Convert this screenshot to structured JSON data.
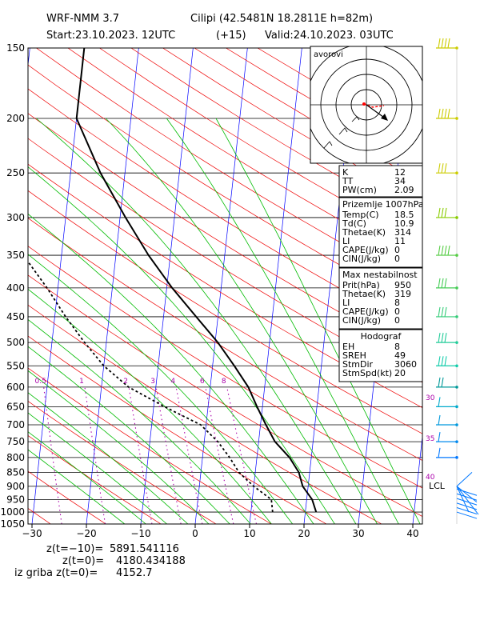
{
  "header": {
    "model": "WRF-NMM 3.7",
    "station": "Cilipi (42.5481N 18.2811E  h=82m)",
    "start": "Start:23.10.2023.   12UTC",
    "lead": "(+15)",
    "valid": "Valid:24.10.2023.  03UTC"
  },
  "chart_data": {
    "type": "line",
    "title": "",
    "pressure_ticks": [
      150,
      200,
      250,
      300,
      350,
      400,
      450,
      500,
      550,
      600,
      650,
      700,
      750,
      800,
      850,
      900,
      950,
      1000,
      1050
    ],
    "temperature_ticks": [
      -30,
      -20,
      -10,
      0,
      10,
      20,
      30,
      40
    ],
    "xlim": [
      -30,
      42
    ],
    "ylim": [
      1050,
      150
    ],
    "skew": true,
    "mixing_ratio_labels": [
      "0.5",
      "1",
      "2",
      "3",
      "4",
      "6",
      "8"
    ],
    "mixing_ratio_values": [
      0.5,
      1,
      2,
      3,
      4,
      6,
      8
    ],
    "series": [
      {
        "kind": "temperature",
        "style": "solid",
        "points": [
          [
            22,
            1000
          ],
          [
            21,
            950
          ],
          [
            19,
            900
          ],
          [
            18,
            850
          ],
          [
            16,
            800
          ],
          [
            13,
            750
          ],
          [
            11,
            700
          ],
          [
            9,
            650
          ],
          [
            7,
            600
          ],
          [
            4,
            550
          ],
          [
            0.5,
            500
          ],
          [
            -4,
            450
          ],
          [
            -9,
            400
          ],
          [
            -14,
            350
          ],
          [
            -19,
            300
          ],
          [
            -24.5,
            250
          ],
          [
            -30,
            200
          ],
          [
            -30,
            150
          ]
        ]
      },
      {
        "kind": "dewpoint",
        "style": "dashed",
        "points": [
          [
            14,
            1000
          ],
          [
            13.5,
            950
          ],
          [
            10,
            900
          ],
          [
            7,
            850
          ],
          [
            5,
            800
          ],
          [
            2.5,
            750
          ],
          [
            -1,
            700
          ],
          [
            -8,
            650
          ],
          [
            -15,
            600
          ],
          [
            -20,
            550
          ],
          [
            -24,
            500
          ],
          [
            -28,
            450
          ],
          [
            -32,
            400
          ],
          [
            -37,
            350
          ],
          [
            -42,
            300
          ],
          [
            -49,
            250
          ],
          [
            -67,
            200
          ],
          [
            -67,
            150
          ]
        ]
      }
    ],
    "hodograph_label": "avorovi",
    "winds_right_labels": [
      "30",
      "35",
      "40"
    ],
    "lcl_label": "LCL",
    "lcl_pressure": 900
  },
  "indices": {
    "general": [
      {
        "k": "K",
        "v": "12"
      },
      {
        "k": "TT",
        "v": "34"
      },
      {
        "k": "PW(cm)",
        "v": "2.09"
      }
    ],
    "surface_title": "Prizemlje 1007hPa",
    "surface": [
      {
        "k": "Temp(C)",
        "v": "18.5"
      },
      {
        "k": "Td(C)",
        "v": "10.9"
      },
      {
        "k": "Thetae(K)",
        "v": "314"
      },
      {
        "k": "LI",
        "v": "11"
      },
      {
        "k": "CAPE(J/kg)",
        "v": "0"
      },
      {
        "k": "CIN(J/kg)",
        "v": "0"
      }
    ],
    "unstable_title": "Max nestabilnost",
    "unstable": [
      {
        "k": "Prit(hPa)",
        "v": "950"
      },
      {
        "k": "Thetae(K)",
        "v": "319"
      },
      {
        "k": "LI",
        "v": "8"
      },
      {
        "k": "CAPE(J/kg)",
        "v": "0"
      },
      {
        "k": "CIN(J/kg)",
        "v": "0"
      }
    ],
    "hodo_title": "Hodograf",
    "hodo": [
      {
        "k": "EH",
        "v": "8"
      },
      {
        "k": "SREH",
        "v": "49"
      },
      {
        "k": "StmDir",
        "v": "3060"
      },
      {
        "k": "StmSpd(kt)",
        "v": "20"
      }
    ]
  },
  "footer": {
    "line1_label": "z(t=−10)=",
    "line1_value": "5891.541116",
    "line2_label": "z(t=0)=",
    "line2_value": "4180.434188",
    "line3_label": "iz griba  z(t=0)=",
    "line3_value": "4152.7"
  },
  "colors": {
    "isotherm": "#0000ff",
    "dry_adiabat": "#ee0000",
    "moist_adiabat": "#00bb00",
    "mixing_ratio": "#aa00aa",
    "wind": "#009999",
    "wind_upper": "#cccc00",
    "wind_low": "#0077ff"
  }
}
